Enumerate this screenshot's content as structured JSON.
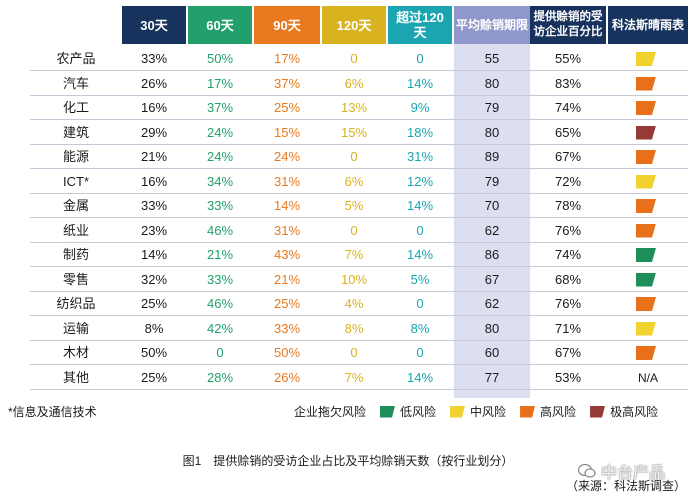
{
  "colors": {
    "low": "#1f8f5a",
    "medium": "#f2d22e",
    "high": "#e8701a",
    "very_high": "#963a36",
    "header_navy": "#17325c"
  },
  "headers": {
    "name": "",
    "d30": "30天",
    "d60": "60天",
    "d90": "90天",
    "d120": "120天",
    "over120": "超过120天",
    "avg": "平均赊销期限",
    "pct": "提供赊销的受访企业百分比",
    "risk": "科法斯晴雨表"
  },
  "rows": [
    {
      "name": "农产品",
      "d30": "33%",
      "d60": "50%",
      "d90": "17%",
      "d120": "0",
      "over120": "0",
      "avg": "55",
      "pct": "55%",
      "risk": "medium",
      "risk_text": ""
    },
    {
      "name": "汽车",
      "d30": "26%",
      "d60": "17%",
      "d90": "37%",
      "d120": "6%",
      "over120": "14%",
      "avg": "80",
      "pct": "83%",
      "risk": "high",
      "risk_text": ""
    },
    {
      "name": "化工",
      "d30": "16%",
      "d60": "37%",
      "d90": "25%",
      "d120": "13%",
      "over120": "9%",
      "avg": "79",
      "pct": "74%",
      "risk": "high",
      "risk_text": ""
    },
    {
      "name": "建筑",
      "d30": "29%",
      "d60": "24%",
      "d90": "15%",
      "d120": "15%",
      "over120": "18%",
      "avg": "80",
      "pct": "65%",
      "risk": "very_high",
      "risk_text": ""
    },
    {
      "name": "能源",
      "d30": "21%",
      "d60": "24%",
      "d90": "24%",
      "d120": "0",
      "over120": "31%",
      "avg": "89",
      "pct": "67%",
      "risk": "high",
      "risk_text": ""
    },
    {
      "name": "ICT*",
      "d30": "16%",
      "d60": "34%",
      "d90": "31%",
      "d120": "6%",
      "over120": "12%",
      "avg": "79",
      "pct": "72%",
      "risk": "medium",
      "risk_text": ""
    },
    {
      "name": "金属",
      "d30": "33%",
      "d60": "33%",
      "d90": "14%",
      "d120": "5%",
      "over120": "14%",
      "avg": "70",
      "pct": "78%",
      "risk": "high",
      "risk_text": ""
    },
    {
      "name": "纸业",
      "d30": "23%",
      "d60": "46%",
      "d90": "31%",
      "d120": "0",
      "over120": "0",
      "avg": "62",
      "pct": "76%",
      "risk": "high",
      "risk_text": ""
    },
    {
      "name": "制药",
      "d30": "14%",
      "d60": "21%",
      "d90": "43%",
      "d120": "7%",
      "over120": "14%",
      "avg": "86",
      "pct": "74%",
      "risk": "low",
      "risk_text": ""
    },
    {
      "name": "零售",
      "d30": "32%",
      "d60": "33%",
      "d90": "21%",
      "d120": "10%",
      "over120": "5%",
      "avg": "67",
      "pct": "68%",
      "risk": "low",
      "risk_text": ""
    },
    {
      "name": "纺织品",
      "d30": "25%",
      "d60": "46%",
      "d90": "25%",
      "d120": "4%",
      "over120": "0",
      "avg": "62",
      "pct": "76%",
      "risk": "high",
      "risk_text": ""
    },
    {
      "name": "运输",
      "d30": "8%",
      "d60": "42%",
      "d90": "33%",
      "d120": "8%",
      "over120": "8%",
      "avg": "80",
      "pct": "71%",
      "risk": "medium",
      "risk_text": ""
    },
    {
      "name": "木材",
      "d30": "50%",
      "d60": "0",
      "d90": "50%",
      "d120": "0",
      "over120": "0",
      "avg": "60",
      "pct": "67%",
      "risk": "high",
      "risk_text": ""
    },
    {
      "name": "其他",
      "d30": "25%",
      "d60": "28%",
      "d90": "26%",
      "d120": "7%",
      "over120": "14%",
      "avg": "77",
      "pct": "53%",
      "risk": "none",
      "risk_text": "N/A"
    }
  ],
  "footnote": "*信息及通信技术",
  "legend": {
    "title": "企业拖欠风险",
    "items": [
      {
        "key": "low",
        "label": "低风险"
      },
      {
        "key": "medium",
        "label": "中风险"
      },
      {
        "key": "high",
        "label": "高风险"
      },
      {
        "key": "very_high",
        "label": "极高风险"
      }
    ]
  },
  "caption": "图1　提供赊销的受访企业占比及平均赊销天数（按行业划分）",
  "source": "（来源：科法斯调查）",
  "watermark": "中台产品"
}
